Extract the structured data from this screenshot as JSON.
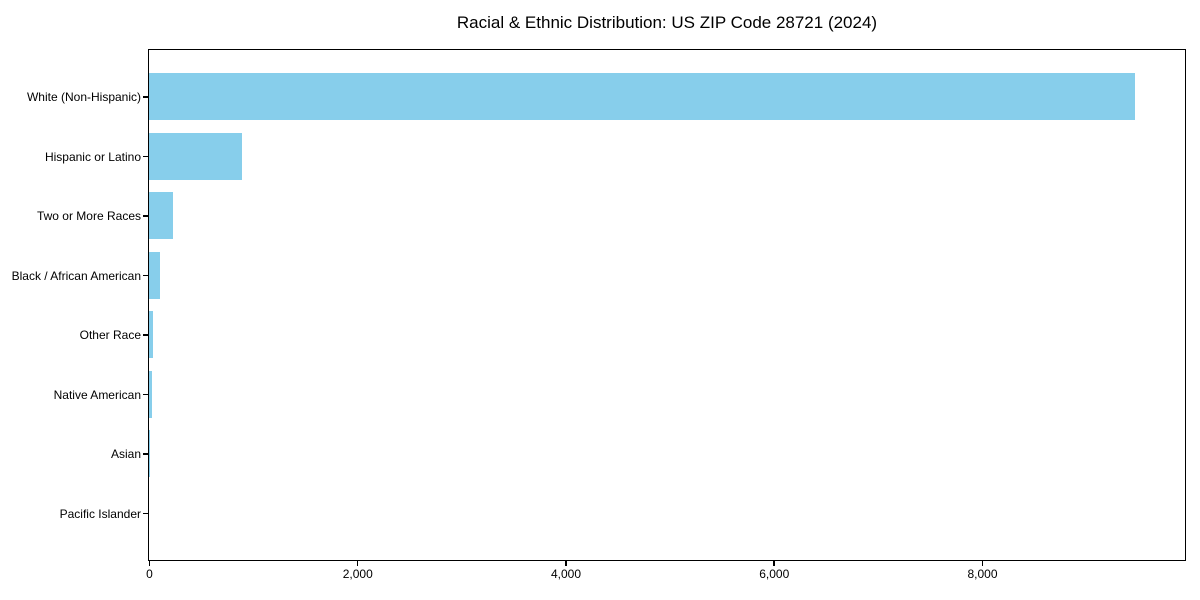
{
  "chart_data": {
    "type": "bar",
    "orientation": "horizontal",
    "title": "Racial & Ethnic Distribution: US ZIP Code 28721 (2024)",
    "categories": [
      "White (Non-Hispanic)",
      "Hispanic or Latino",
      "Two or More Races",
      "Black / African American",
      "Other Race",
      "Native American",
      "Asian",
      "Pacific Islander"
    ],
    "values": [
      9470,
      890,
      230,
      105,
      36,
      27,
      5,
      0
    ],
    "xlabel": "",
    "ylabel": "",
    "xlim": [
      0,
      9940
    ],
    "x_ticks": [
      0,
      2000,
      4000,
      6000,
      8000
    ],
    "x_tick_labels": [
      "0",
      "2,000",
      "4,000",
      "6,000",
      "8,000"
    ],
    "grid": false,
    "legend": null,
    "bar_color": "#87CEEB",
    "axis_color": "#000000",
    "background_color": "#FFFFFF",
    "text_color": "#000000"
  }
}
